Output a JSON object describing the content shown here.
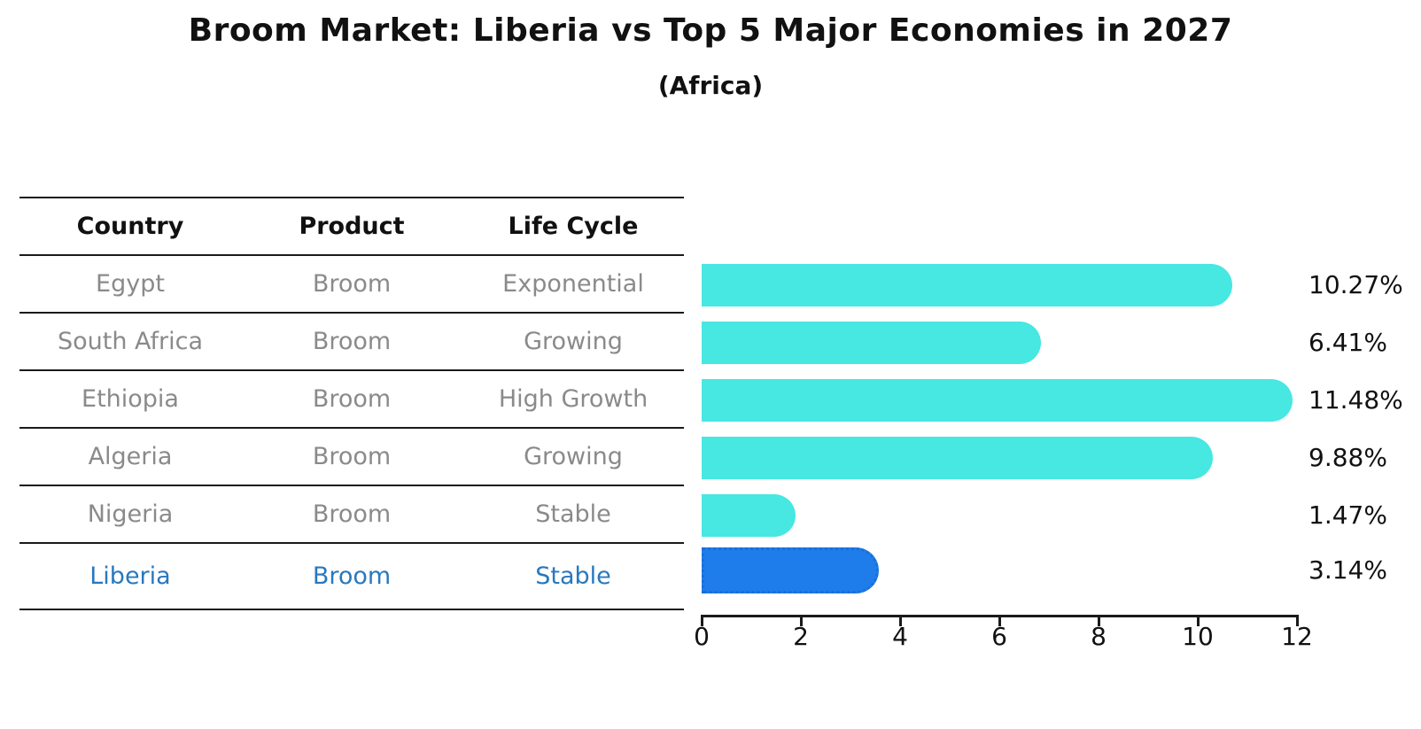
{
  "title": "Broom Market: Liberia vs Top 5 Major Economies in 2027",
  "subtitle": "(Africa)",
  "table": {
    "headers": [
      "Country",
      "Product",
      "Life Cycle"
    ],
    "rows": [
      {
        "country": "Egypt",
        "product": "Broom",
        "life_cycle": "Exponential",
        "highlighted": false
      },
      {
        "country": "South Africa",
        "product": "Broom",
        "life_cycle": "Growing",
        "highlighted": false
      },
      {
        "country": "Ethiopia",
        "product": "Broom",
        "life_cycle": "High Growth",
        "highlighted": false
      },
      {
        "country": "Algeria",
        "product": "Broom",
        "life_cycle": "Growing",
        "highlighted": false
      },
      {
        "country": "Nigeria",
        "product": "Broom",
        "life_cycle": "Stable",
        "highlighted": false
      },
      {
        "country": "Liberia",
        "product": "Broom",
        "life_cycle": "Stable",
        "highlighted": true
      }
    ]
  },
  "chart_data": {
    "type": "bar",
    "orientation": "horizontal",
    "title": "Broom Market: Liberia vs Top 5 Major Economies in 2027",
    "subtitle": "(Africa)",
    "categories": [
      "Egypt",
      "South Africa",
      "Ethiopia",
      "Algeria",
      "Nigeria",
      "Liberia"
    ],
    "values": [
      10.27,
      6.41,
      11.48,
      9.88,
      1.47,
      3.14
    ],
    "value_labels": [
      "10.27%",
      "6.41%",
      "11.48%",
      "9.88%",
      "1.47%",
      "3.14%"
    ],
    "xlabel": "",
    "ylabel": "",
    "xlim": [
      0,
      12
    ],
    "xticks": [
      0,
      2,
      4,
      6,
      8,
      10,
      12
    ],
    "grid": false,
    "legend": false,
    "highlight_index": 5
  },
  "colors": {
    "bar": "#47E7E2",
    "highlight_bar": "#1E7CEB",
    "highlight_text": "#2878BE",
    "row_text": "#8A8A8A",
    "line": "#1A1A1A"
  }
}
